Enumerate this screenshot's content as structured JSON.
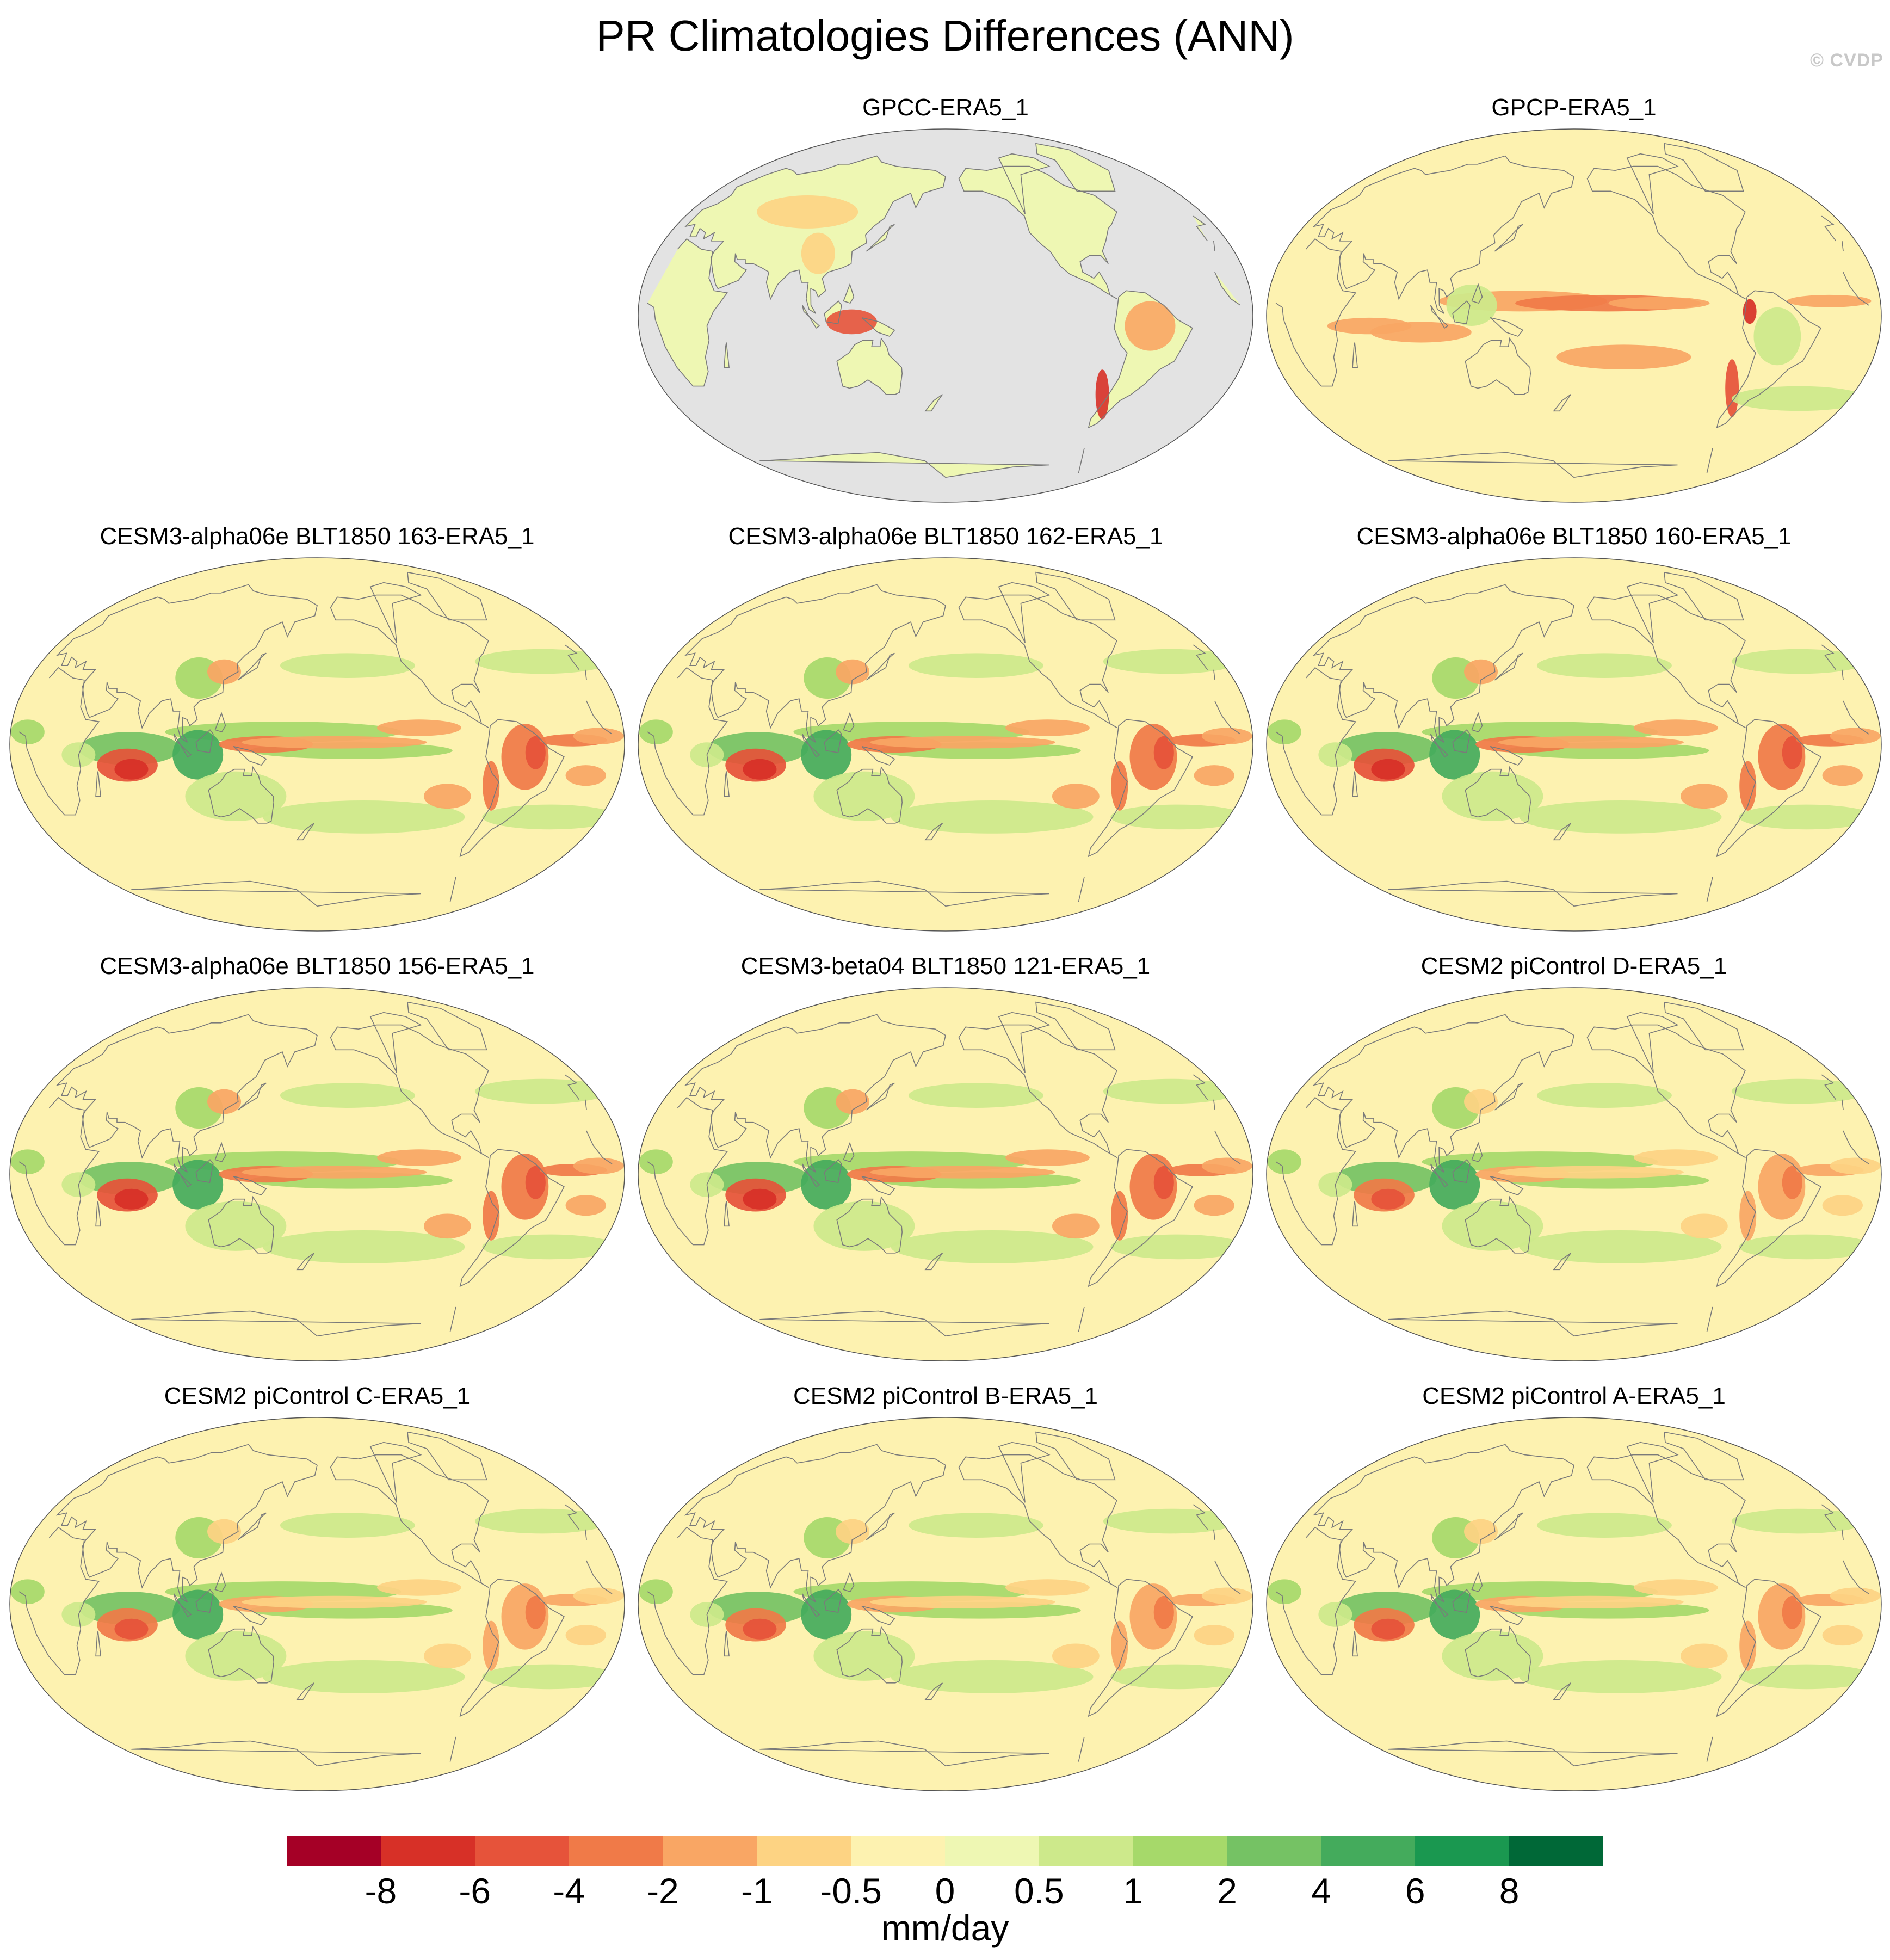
{
  "title": "PR Climatologies Differences (ANN)",
  "watermark": "© CVDP",
  "panels": [
    {
      "title": "GPCC-ERA5_1",
      "land_only": true
    },
    {
      "title": "GPCP-ERA5_1",
      "land_only": false
    },
    {
      "title": "CESM3-alpha06e BLT1850 163-ERA5_1",
      "land_only": false
    },
    {
      "title": "CESM3-alpha06e BLT1850 162-ERA5_1",
      "land_only": false
    },
    {
      "title": "CESM3-alpha06e BLT1850 160-ERA5_1",
      "land_only": false
    },
    {
      "title": "CESM3-alpha06e BLT1850 156-ERA5_1",
      "land_only": false
    },
    {
      "title": "CESM3-beta04 BLT1850 121-ERA5_1",
      "land_only": false
    },
    {
      "title": "CESM2 piControl D-ERA5_1",
      "land_only": false
    },
    {
      "title": "CESM2 piControl C-ERA5_1",
      "land_only": false
    },
    {
      "title": "CESM2 piControl B-ERA5_1",
      "land_only": false
    },
    {
      "title": "CESM2 piControl A-ERA5_1",
      "land_only": false
    }
  ],
  "colorbar": {
    "labels": [
      "-8",
      "-6",
      "-4",
      "-2",
      "-1",
      "-0.5",
      "0",
      "0.5",
      "1",
      "2",
      "4",
      "6",
      "8"
    ],
    "colors": [
      "#a50026",
      "#d73027",
      "#e6533a",
      "#f07a48",
      "#f9a664",
      "#fdd383",
      "#fdf2b0",
      "#eef7b3",
      "#cde98b",
      "#a6d96a",
      "#75c264",
      "#44ab5c",
      "#1a9850",
      "#006837"
    ],
    "units": "mm/day"
  },
  "colors": {
    "land_mask": "#e3e3e3",
    "coast": "#7a7a7a"
  }
}
